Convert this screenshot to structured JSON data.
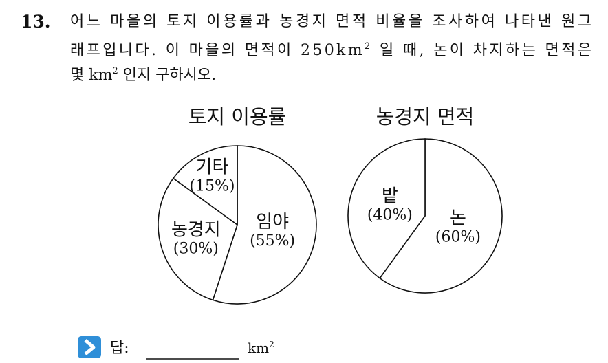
{
  "problem": {
    "number": "13.",
    "lines": [
      {
        "before": "어느 마을의 토지 이용률과 농경지 면적 비율을 조사하여 나타낸 원그"
      },
      {
        "before": "래프입니다. 이 마을의 면적이 250km",
        "sup": "2",
        "after": " 일 때, 논이 차지하는 면적은"
      },
      {
        "before": "몇 km",
        "sup": "2",
        "after": " 인지 구하시오."
      }
    ]
  },
  "chart_data": [
    {
      "type": "pie",
      "title": "토지 이용률",
      "categories": [
        "임야",
        "농경지",
        "기타"
      ],
      "values": [
        55,
        30,
        15
      ],
      "value_labels": [
        "(55%)",
        "(30%)",
        "(15%)"
      ],
      "color": "#ffffff"
    },
    {
      "type": "pie",
      "title": "농경지 면적",
      "categories": [
        "논",
        "밭"
      ],
      "values": [
        60,
        40
      ],
      "value_labels": [
        "(60%)",
        "(40%)"
      ],
      "color": "#ffffff"
    }
  ],
  "answer": {
    "label": "답:",
    "unit": "km",
    "unit_sup": "2"
  }
}
